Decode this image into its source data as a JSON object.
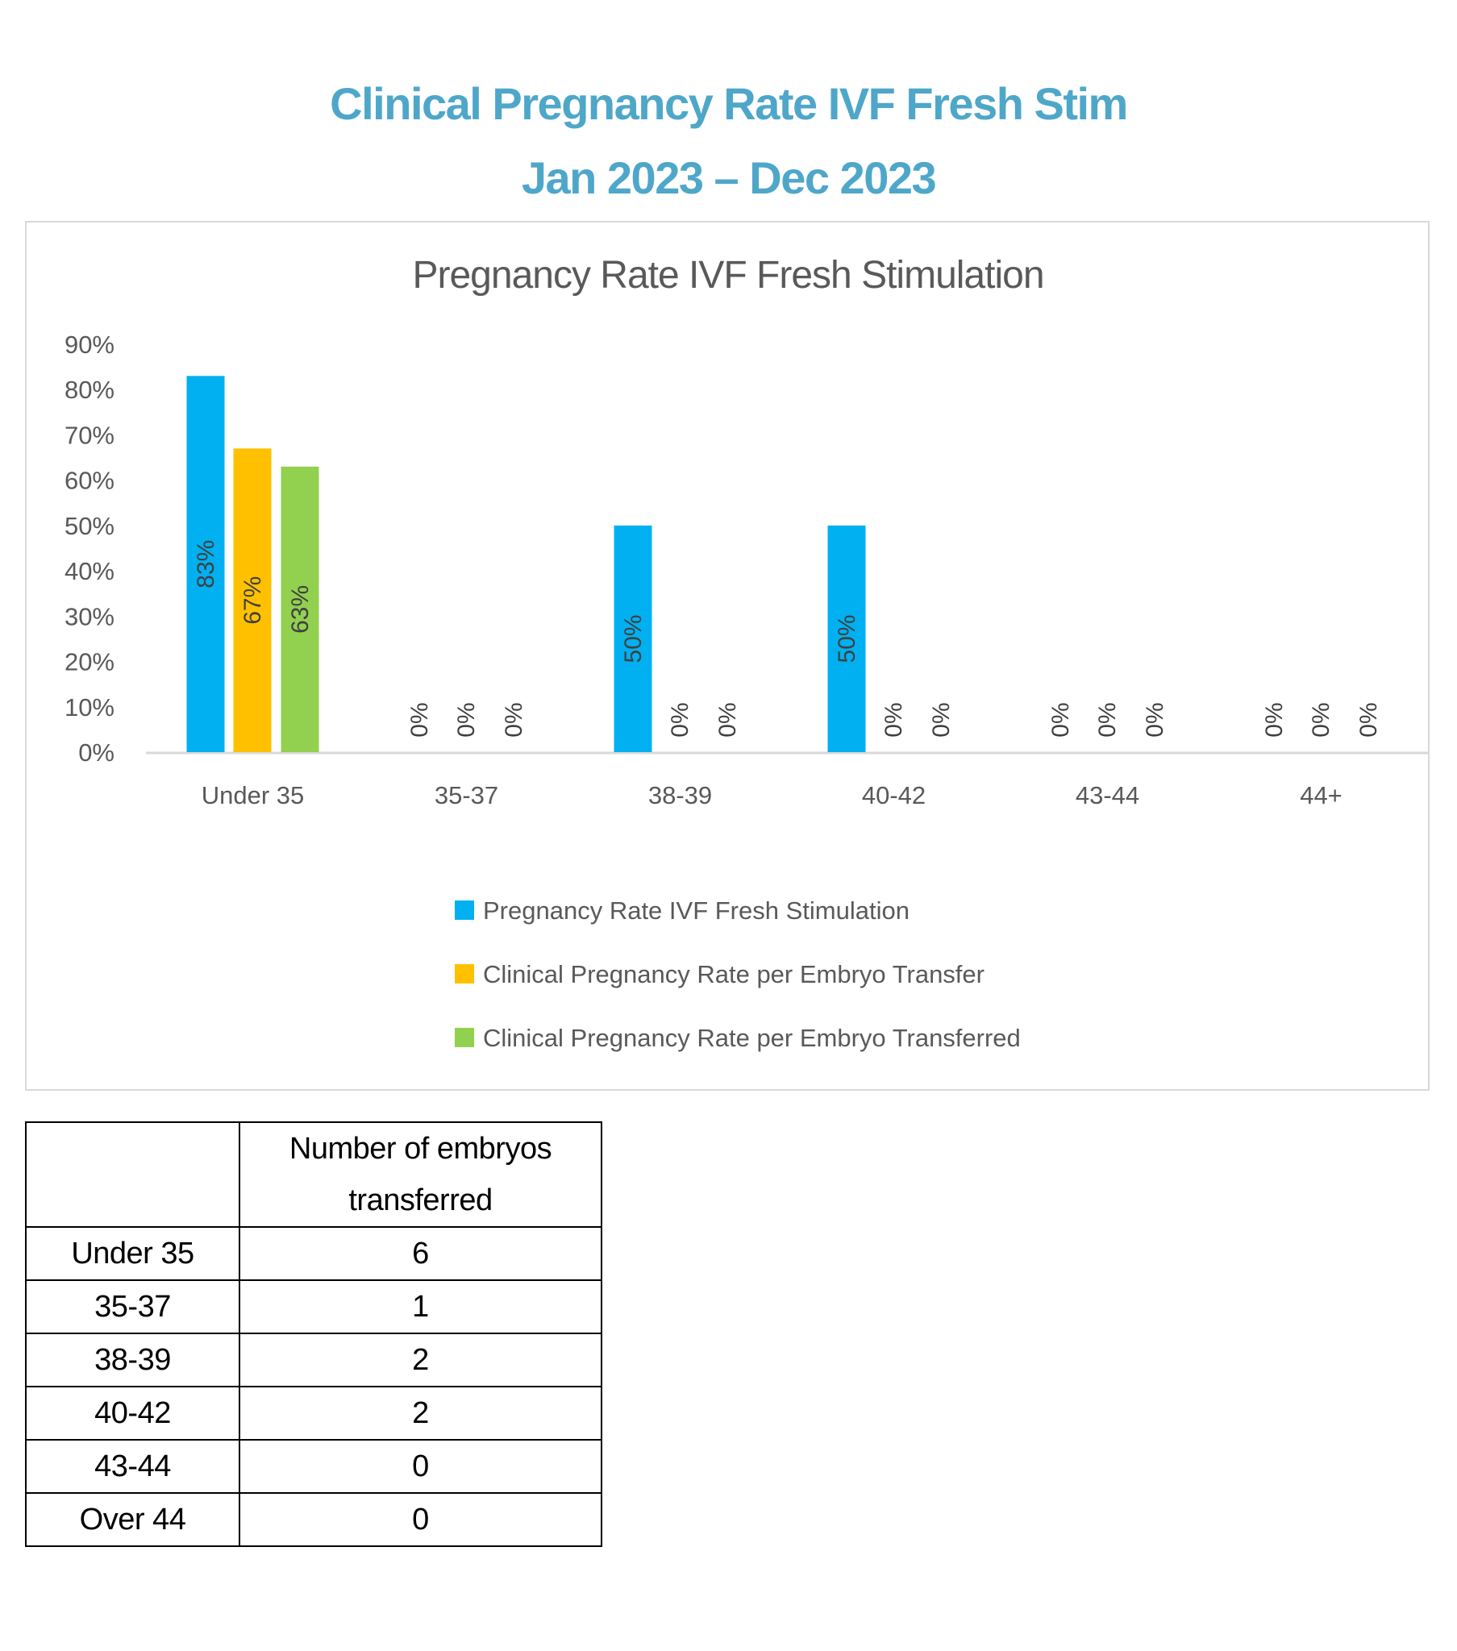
{
  "header": {
    "title_line1": "Clinical Pregnancy Rate IVF Fresh Stim",
    "title_line2": "Jan 2023 – Dec 2023"
  },
  "chart_data": {
    "type": "bar",
    "title": "Pregnancy Rate IVF Fresh Stimulation",
    "categories": [
      "Under 35",
      "35-37",
      "38-39",
      "40-42",
      "43-44",
      "44+"
    ],
    "series": [
      {
        "name": "Pregnancy Rate IVF Fresh Stimulation",
        "color": "#00b0f0",
        "values": [
          83,
          0,
          50,
          50,
          0,
          0
        ]
      },
      {
        "name": "Clinical Pregnancy Rate per Embryo Transfer",
        "color": "#ffc000",
        "values": [
          67,
          0,
          0,
          0,
          0,
          0
        ]
      },
      {
        "name": "Clinical Pregnancy Rate per Embryo Transferred",
        "color": "#92d050",
        "values": [
          63,
          0,
          0,
          0,
          0,
          0
        ]
      }
    ],
    "yticks": [
      "0%",
      "10%",
      "20%",
      "30%",
      "40%",
      "50%",
      "60%",
      "70%",
      "80%",
      "90%"
    ],
    "ylim": [
      0,
      90
    ],
    "xlabel": "",
    "ylabel": "",
    "grid": false,
    "legend_position": "bottom"
  },
  "table": {
    "header": [
      "",
      "Number of embryos transferred"
    ],
    "rows": [
      [
        "Under 35",
        "6"
      ],
      [
        "35-37",
        "1"
      ],
      [
        "38-39",
        "2"
      ],
      [
        "40-42",
        "2"
      ],
      [
        "43-44",
        "0"
      ],
      [
        "Over 44",
        "0"
      ]
    ]
  }
}
